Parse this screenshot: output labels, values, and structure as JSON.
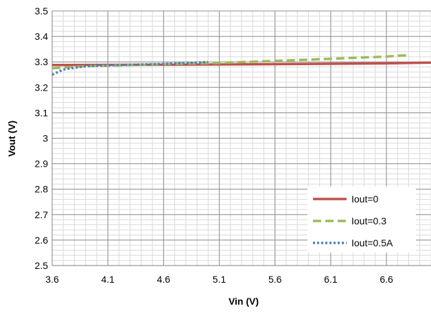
{
  "chart_data": {
    "type": "line",
    "title": "",
    "xlabel": "Vin (V)",
    "ylabel": "Vout (V)",
    "xlim": [
      3.6,
      7.0
    ],
    "ylim": [
      2.5,
      3.5
    ],
    "x_ticks": [
      "3.6",
      "4.1",
      "4.6",
      "5.1",
      "5.6",
      "6.1",
      "6.6"
    ],
    "y_ticks": [
      "2.5",
      "2.6",
      "2.7",
      "2.8",
      "2.9",
      "3",
      "3.1",
      "3.2",
      "3.3",
      "3.4",
      "3.5"
    ],
    "grid": true,
    "legend_position": "bottom-right",
    "series": [
      {
        "name": "Iout=0",
        "color": "#c0504d",
        "style": "solid",
        "x": [
          3.6,
          4.6,
          5.6,
          6.6,
          7.0
        ],
        "y": [
          3.288,
          3.289,
          3.291,
          3.294,
          3.297
        ]
      },
      {
        "name": "Iout=0.3",
        "color": "#9bbb59",
        "style": "dashed",
        "x": [
          3.6,
          3.9,
          4.6,
          5.1,
          5.6,
          6.1,
          6.6,
          6.8
        ],
        "y": [
          3.275,
          3.283,
          3.291,
          3.296,
          3.304,
          3.312,
          3.321,
          3.327
        ]
      },
      {
        "name": "Iout=0.5A",
        "color": "#4f81bd",
        "style": "dotted",
        "x": [
          3.6,
          3.7,
          3.9,
          4.2,
          4.6,
          4.9,
          5.0
        ],
        "y": [
          3.25,
          3.27,
          3.283,
          3.288,
          3.292,
          3.297,
          3.3
        ]
      }
    ]
  }
}
